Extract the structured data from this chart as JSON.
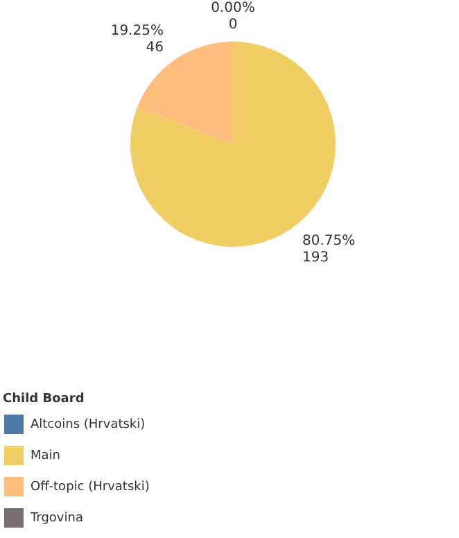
{
  "chart_data": {
    "type": "pie",
    "legend_title": "Child Board",
    "legend": "bottom left",
    "categories": [
      "Altcoins (Hrvatski)",
      "Main",
      "Off-topic (Hrvatski)",
      "Trgovina"
    ],
    "values": [
      0,
      193,
      46,
      0
    ],
    "colors": [
      "#4e79a7",
      "#f1ce63",
      "#ffbe7d",
      "#79706e"
    ],
    "value_labels": [
      "0.00%\n0",
      "80.75%\n193",
      "19.25%\n46",
      null
    ]
  }
}
